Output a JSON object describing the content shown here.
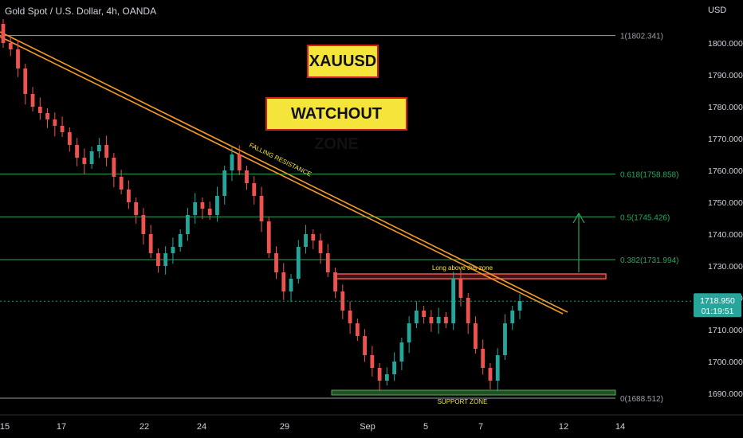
{
  "header": {
    "title": "Gold Spot / U.S. Dollar, 4h, OANDA",
    "currency": "USD"
  },
  "price_tag": {
    "price": "1718.950",
    "countdown": "01:19:51"
  },
  "annotations": {
    "symbol_box": "XAUUSD",
    "watch_box": "WATCHOUT ZONE",
    "falling_resistance": "FALLING RESISTANCE",
    "long_zone": "Long above this zone",
    "support_zone": "SUPPORT ZONE"
  },
  "colors": {
    "background": "#000000",
    "bull": "#26a69a",
    "bear": "#ef5350",
    "fib_line": "#26a65b",
    "trendline": "#f59b23",
    "label_fill": "#f5e53a",
    "label_border": "#d61e1e"
  },
  "chart_data": {
    "type": "candlestick",
    "instrument": "Gold Spot / U.S. Dollar",
    "timeframe": "4h",
    "source": "OANDA",
    "x_ticks": [
      "15",
      "17",
      "22",
      "24",
      "29",
      "Sep",
      "5",
      "7",
      "12",
      "14"
    ],
    "y_ticks": [
      "1800.000",
      "1790.000",
      "1780.000",
      "1770.000",
      "1760.000",
      "1750.000",
      "1740.000",
      "1730.000",
      "1720.000",
      "1710.000",
      "1700.000",
      "1690.000"
    ],
    "ylim": [
      1682,
      1814
    ],
    "last_price": 1718.95,
    "fib_levels": [
      {
        "label": "1(1802.341)",
        "value": 1802.341
      },
      {
        "label": "0.618(1758.858)",
        "value": 1758.858
      },
      {
        "label": "0.5(1745.426)",
        "value": 1745.426
      },
      {
        "label": "0.382(1731.994)",
        "value": 1731.994
      },
      {
        "label": "0(1688.512)",
        "value": 1688.512
      }
    ],
    "zones": {
      "long_above": [
        1726.0,
        1727.5
      ],
      "support": [
        1689.5,
        1691.0
      ]
    },
    "candle_closes_approx": [
      1800,
      1798,
      1792,
      1784,
      1780,
      1778,
      1776,
      1774,
      1772,
      1768,
      1764,
      1762,
      1766,
      1768,
      1764,
      1758,
      1754,
      1750,
      1746,
      1740,
      1734,
      1730,
      1734,
      1736,
      1740,
      1746,
      1750,
      1748,
      1746,
      1752,
      1760,
      1765,
      1760,
      1756,
      1752,
      1744,
      1734,
      1728,
      1722,
      1726,
      1736,
      1740,
      1738,
      1734,
      1728,
      1722,
      1716,
      1712,
      1708,
      1702,
      1698,
      1694,
      1696,
      1700,
      1706,
      1712,
      1716,
      1714,
      1712,
      1714,
      1712,
      1726,
      1720,
      1712,
      1704,
      1698,
      1694,
      1702,
      1712,
      1716,
      1719
    ]
  }
}
